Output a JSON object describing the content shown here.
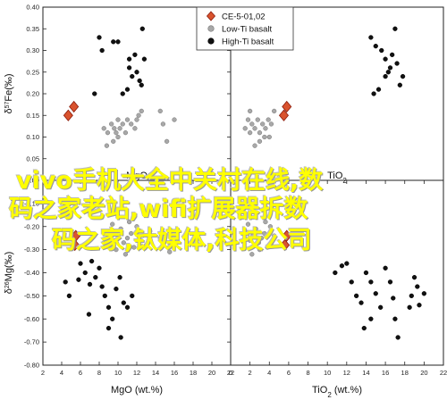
{
  "legend": {
    "items": [
      {
        "label": "CE-5-01,02",
        "marker": "diamond",
        "color": "#d9532e",
        "stroke": "#8b1a0a"
      },
      {
        "label": "Low-Ti basalt",
        "marker": "circle",
        "color": "#a8a8a8",
        "stroke": "#777777"
      },
      {
        "label": "High-Ti basalt",
        "marker": "circle",
        "color": "#111111",
        "stroke": "#000000"
      }
    ]
  },
  "watermark": {
    "line1": "vivo手机大全中关村在线,数",
    "line2": "码之家老站,wifi扩展器拆数",
    "line3": "码之家,钛媒体,科技公司",
    "color": "#ffff00"
  },
  "chart_data": [
    {
      "type": "scatter",
      "panel": "top-left",
      "xlabel": "MgO",
      "ylabel": "δ57Fe(‰)",
      "xlim": [
        2,
        22
      ],
      "ylim": [
        0,
        0.4
      ],
      "xticks": [],
      "yticks": [
        0,
        0.05,
        0.1,
        0.15,
        0.2,
        0.25,
        0.3,
        0.35,
        0.4
      ],
      "series": [
        {
          "name": "CE-5-01,02",
          "points": [
            [
              4.7,
              0.15
            ],
            [
              5.3,
              0.17
            ]
          ]
        },
        {
          "name": "Low-Ti basalt",
          "points": [
            [
              8.5,
              0.12
            ],
            [
              8.9,
              0.11
            ],
            [
              9.3,
              0.13
            ],
            [
              9.6,
              0.12
            ],
            [
              9.8,
              0.11
            ],
            [
              10.0,
              0.14
            ],
            [
              10.2,
              0.12
            ],
            [
              10.5,
              0.13
            ],
            [
              10.8,
              0.11
            ],
            [
              11.0,
              0.14
            ],
            [
              11.4,
              0.13
            ],
            [
              11.8,
              0.12
            ],
            [
              12.0,
              0.14
            ],
            [
              12.5,
              0.16
            ],
            [
              12.2,
              0.15
            ],
            [
              14.5,
              0.16
            ],
            [
              14.8,
              0.13
            ],
            [
              15.2,
              0.09
            ],
            [
              16.0,
              0.14
            ],
            [
              10.0,
              0.1
            ],
            [
              9.5,
              0.09
            ],
            [
              8.8,
              0.08
            ]
          ]
        },
        {
          "name": "High-Ti basalt",
          "points": [
            [
              8.0,
              0.33
            ],
            [
              8.3,
              0.3
            ],
            [
              9.5,
              0.32
            ],
            [
              10.0,
              0.32
            ],
            [
              11.2,
              0.28
            ],
            [
              11.5,
              0.24
            ],
            [
              12.0,
              0.25
            ],
            [
              12.3,
              0.23
            ],
            [
              12.6,
              0.35
            ],
            [
              11.8,
              0.29
            ],
            [
              12.8,
              0.28
            ],
            [
              11.0,
              0.21
            ],
            [
              10.5,
              0.2
            ],
            [
              12.5,
              0.22
            ],
            [
              11.2,
              0.26
            ],
            [
              7.5,
              0.2
            ]
          ]
        }
      ]
    },
    {
      "type": "scatter",
      "panel": "top-right",
      "xlabel": "TiO2",
      "ylabel": "",
      "xlim": [
        0,
        22
      ],
      "ylim": [
        0,
        0.4
      ],
      "xticks": [],
      "yticks": [],
      "series": [
        {
          "name": "CE-5-01,02",
          "points": [
            [
              5.5,
              0.15
            ],
            [
              5.8,
              0.17
            ]
          ]
        },
        {
          "name": "Low-Ti basalt",
          "points": [
            [
              1.5,
              0.12
            ],
            [
              2.0,
              0.11
            ],
            [
              2.2,
              0.13
            ],
            [
              2.5,
              0.12
            ],
            [
              2.8,
              0.14
            ],
            [
              3.0,
              0.11
            ],
            [
              3.3,
              0.13
            ],
            [
              3.6,
              0.12
            ],
            [
              3.9,
              0.14
            ],
            [
              4.2,
              0.13
            ],
            [
              4.5,
              0.16
            ],
            [
              2.0,
              0.16
            ],
            [
              1.8,
              0.14
            ],
            [
              3.0,
              0.09
            ],
            [
              4.0,
              0.1
            ],
            [
              2.5,
              0.08
            ],
            [
              3.5,
              0.1
            ]
          ]
        },
        {
          "name": "High-Ti basalt",
          "points": [
            [
              14.5,
              0.33
            ],
            [
              15.0,
              0.31
            ],
            [
              15.6,
              0.3
            ],
            [
              16.0,
              0.28
            ],
            [
              16.3,
              0.25
            ],
            [
              16.7,
              0.29
            ],
            [
              17.0,
              0.35
            ],
            [
              17.2,
              0.27
            ],
            [
              16.0,
              0.24
            ],
            [
              14.8,
              0.2
            ],
            [
              15.3,
              0.21
            ],
            [
              17.5,
              0.22
            ],
            [
              17.8,
              0.24
            ],
            [
              16.5,
              0.26
            ]
          ]
        }
      ]
    },
    {
      "type": "scatter",
      "panel": "bottom-left",
      "xlabel": "MgO (wt.%)",
      "ylabel": "δ26Mg(‰)",
      "xlim": [
        2,
        22
      ],
      "ylim": [
        -0.8,
        0
      ],
      "xticks": [
        2,
        4,
        6,
        8,
        10,
        12,
        14,
        16,
        18,
        20,
        22
      ],
      "yticks": [
        -0.8,
        -0.7,
        -0.6,
        -0.5,
        -0.4,
        -0.3,
        -0.2,
        -0.1,
        0
      ],
      "series": [
        {
          "name": "CE-5-01,02",
          "points": [
            [
              5.5,
              -0.24
            ],
            [
              5.4,
              -0.28
            ]
          ]
        },
        {
          "name": "Low-Ti basalt",
          "points": [
            [
              9.0,
              -0.22
            ],
            [
              9.5,
              -0.26
            ],
            [
              10.0,
              -0.24
            ],
            [
              10.3,
              -0.21
            ],
            [
              10.6,
              -0.27
            ],
            [
              11.0,
              -0.25
            ],
            [
              11.4,
              -0.23
            ],
            [
              11.7,
              -0.29
            ],
            [
              12.0,
              -0.2
            ],
            [
              12.3,
              -0.24
            ],
            [
              13.0,
              -0.28
            ],
            [
              13.4,
              -0.22
            ],
            [
              14.5,
              -0.25
            ],
            [
              15.5,
              -0.31
            ],
            [
              9.8,
              -0.3
            ],
            [
              10.8,
              -0.32
            ],
            [
              8.5,
              -0.27
            ],
            [
              11.2,
              -0.18
            ],
            [
              9.4,
              -0.19
            ]
          ]
        },
        {
          "name": "High-Ti basalt",
          "points": [
            [
              6.0,
              -0.36
            ],
            [
              6.5,
              -0.4
            ],
            [
              7.0,
              -0.45
            ],
            [
              7.2,
              -0.35
            ],
            [
              7.6,
              -0.42
            ],
            [
              8.0,
              -0.38
            ],
            [
              8.3,
              -0.46
            ],
            [
              8.6,
              -0.5
            ],
            [
              9.0,
              -0.55
            ],
            [
              9.4,
              -0.6
            ],
            [
              9.8,
              -0.47
            ],
            [
              10.2,
              -0.42
            ],
            [
              10.6,
              -0.53
            ],
            [
              11.0,
              -0.55
            ],
            [
              11.5,
              -0.5
            ],
            [
              10.3,
              -0.68
            ],
            [
              9.0,
              -0.64
            ],
            [
              4.4,
              -0.44
            ],
            [
              4.8,
              -0.5
            ],
            [
              5.8,
              -0.43
            ],
            [
              6.9,
              -0.58
            ]
          ]
        }
      ]
    },
    {
      "type": "scatter",
      "panel": "bottom-right",
      "xlabel": "TiO2 (wt.%)",
      "ylabel": "",
      "xlim": [
        0,
        22
      ],
      "ylim": [
        -0.8,
        0
      ],
      "xticks": [
        0,
        2,
        4,
        6,
        8,
        10,
        12,
        14,
        16,
        18,
        20,
        22
      ],
      "yticks": [],
      "series": [
        {
          "name": "CE-5-01,02",
          "points": [
            [
              5.8,
              -0.24
            ],
            [
              5.6,
              -0.28
            ]
          ]
        },
        {
          "name": "Low-Ti basalt",
          "points": [
            [
              1.5,
              -0.22
            ],
            [
              2.0,
              -0.26
            ],
            [
              2.3,
              -0.24
            ],
            [
              2.6,
              -0.21
            ],
            [
              2.9,
              -0.27
            ],
            [
              3.2,
              -0.25
            ],
            [
              3.5,
              -0.23
            ],
            [
              3.8,
              -0.29
            ],
            [
              4.1,
              -0.2
            ],
            [
              4.5,
              -0.24
            ],
            [
              1.8,
              -0.19
            ],
            [
              3.0,
              -0.3
            ],
            [
              2.2,
              -0.32
            ],
            [
              4.2,
              -0.28
            ],
            [
              3.6,
              -0.18
            ]
          ]
        },
        {
          "name": "High-Ti basalt",
          "points": [
            [
              10.8,
              -0.4
            ],
            [
              11.5,
              -0.37
            ],
            [
              12.0,
              -0.36
            ],
            [
              12.5,
              -0.44
            ],
            [
              13.0,
              -0.5
            ],
            [
              13.5,
              -0.53
            ],
            [
              14.0,
              -0.4
            ],
            [
              14.5,
              -0.44
            ],
            [
              15.0,
              -0.49
            ],
            [
              15.5,
              -0.55
            ],
            [
              16.0,
              -0.38
            ],
            [
              16.5,
              -0.44
            ],
            [
              16.8,
              -0.51
            ],
            [
              17.0,
              -0.6
            ],
            [
              17.3,
              -0.68
            ],
            [
              14.5,
              -0.6
            ],
            [
              13.8,
              -0.64
            ],
            [
              18.7,
              -0.5
            ],
            [
              19.0,
              -0.42
            ],
            [
              19.3,
              -0.46
            ],
            [
              20.0,
              -0.49
            ],
            [
              19.5,
              -0.54
            ],
            [
              18.5,
              -0.55
            ]
          ]
        }
      ]
    }
  ]
}
